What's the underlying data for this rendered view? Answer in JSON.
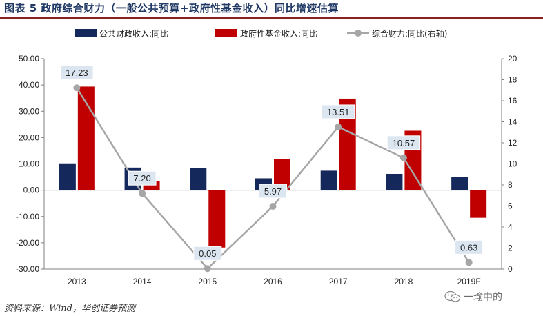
{
  "figure": {
    "title": "图表 5   政府综合财力（一般公共预算+政府性基金收入）同比增速估算",
    "source": "资料来源：Wind，华创证券预测",
    "watermark": "一瑜中的"
  },
  "colors": {
    "title": "#1f3864",
    "rule": "#8e1f1f",
    "series_public_budget": "#14285c",
    "series_fund_income": "#c00000",
    "series_combined": "#a6a6a6",
    "label_box": "#dce6f1"
  },
  "chart_data": {
    "type": "bar",
    "categories": [
      "2013",
      "2014",
      "2015",
      "2016",
      "2017",
      "2018",
      "2019F"
    ],
    "series": [
      {
        "name": "公共财政收入:同比",
        "type": "bar",
        "axis": "left",
        "values": [
          10.2,
          8.6,
          8.4,
          4.5,
          7.4,
          6.2,
          5.0
        ]
      },
      {
        "name": "政府性基金收入:同比",
        "type": "bar",
        "axis": "left",
        "values": [
          39.4,
          3.5,
          -21.8,
          11.9,
          34.8,
          22.6,
          -10.5
        ]
      },
      {
        "name": "综合财力:同比(右轴)",
        "type": "line",
        "axis": "right",
        "values": [
          17.23,
          7.2,
          0.05,
          5.97,
          13.51,
          10.57,
          0.63
        ],
        "labels": [
          "17.23",
          "7.20",
          "0.05",
          "5.97",
          "13.51",
          "10.57",
          "0.63"
        ]
      }
    ],
    "y_left": {
      "ylim": [
        -30,
        50
      ],
      "ticks": [
        50,
        40,
        30,
        20,
        10,
        0,
        -10,
        -20,
        -30
      ],
      "tick_labels": [
        "50.00",
        "40.00",
        "30.00",
        "20.00",
        "10.00",
        "0.00",
        "-10.00",
        "-20.00",
        "-30.00"
      ]
    },
    "y_right": {
      "ylim": [
        0,
        20
      ],
      "ticks": [
        20,
        18,
        16,
        14,
        12,
        10,
        8,
        6,
        4,
        2,
        0
      ],
      "tick_labels": [
        "20",
        "18",
        "16",
        "14",
        "12",
        "10",
        "8",
        "6",
        "4",
        "2",
        "0"
      ]
    },
    "legend": {
      "placement": "top"
    },
    "grid": false
  }
}
